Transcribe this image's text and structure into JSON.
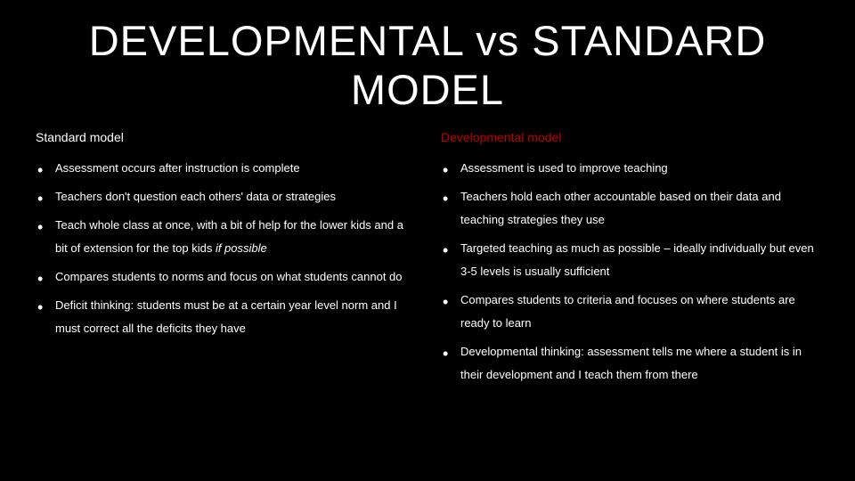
{
  "title": "DEVELOPMENTAL VS STANDARD MODEL",
  "left": {
    "header": "Standard model",
    "items": [
      "Assessment occurs after instruction is complete",
      "Teachers don't question each others' data or strategies",
      "Teach whole class at once, with a bit of help for the lower kids and a bit of extension for the top kids if possible",
      "Compares students to norms and focus on what students cannot do",
      "Deficit thinking: students must be at a certain year level norm and I must correct all the deficits they have"
    ]
  },
  "right": {
    "header": "Developmental model",
    "items": [
      "Assessment is used to improve teaching",
      "Teachers hold each other accountable based on their data and teaching strategies they use",
      "Targeted teaching as much as possible – ideally individually but even 3-5 levels is usually sufficient",
      "Compares students to criteria and focuses on where students are ready to learn",
      "Developmental thinking: assessment tells me where a student is in their development and I teach them from there"
    ]
  },
  "colors": {
    "background": "#000000",
    "text": "#ffffff",
    "accent": "#c00000"
  }
}
